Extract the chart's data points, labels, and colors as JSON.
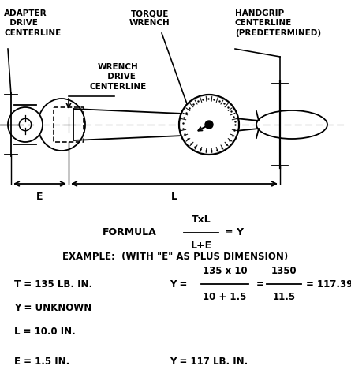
{
  "bg_color": "#ffffff",
  "labels": {
    "adapter_drive": "ADAPTER\n  DRIVE\nCENTERLINE",
    "torque_wrench": "TORQUE\nWRENCH",
    "handgrip": "HANDGRIP\nCENTERLINE\n(PREDETERMINED)",
    "wrench_drive": "WRENCH\n  DRIVE\nCENTERLINE",
    "E_label": "E",
    "L_label": "L",
    "formula_prefix": "FORMULA",
    "formula_numerator": "TxL",
    "formula_denominator": "L+E",
    "formula_suffix": "= Y",
    "example_line": "EXAMPLE:  (WITH \"E\" AS PLUS DIMENSION)",
    "T_val": "T = 135 LB. IN.",
    "Y_unknown": "Y = UNKNOWN",
    "L_val": "L = 10.0 IN.",
    "E_val": "E = 1.5 IN.",
    "Y_calc_prefix": "Y = ",
    "Y_calc_num": "135 x 10",
    "Y_calc_den": "10 + 1.5",
    "Y_calc_eq1": "=",
    "Y_calc_num2": "1350",
    "Y_calc_den2": "11.5",
    "Y_calc_result": "= 117.39",
    "Y_final": "Y = 117 LB. IN."
  }
}
